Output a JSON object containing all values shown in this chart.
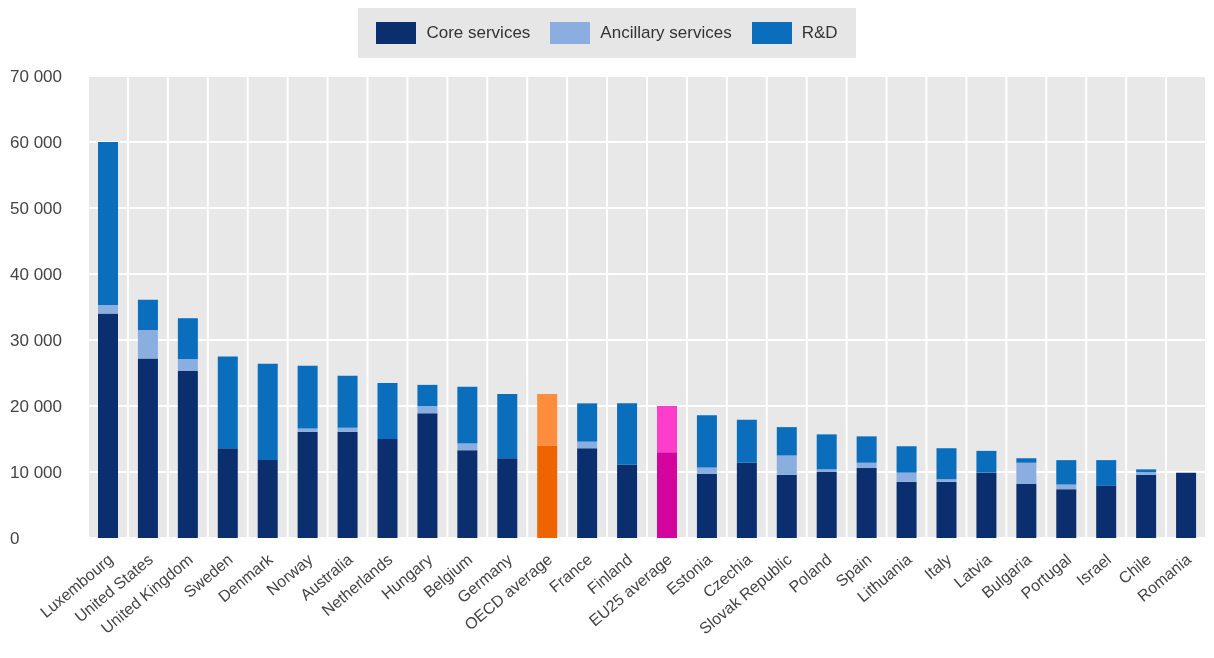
{
  "chart_data": {
    "type": "bar",
    "stacked": true,
    "categories": [
      "Luxembourg",
      "United States",
      "United Kingdom",
      "Sweden",
      "Denmark",
      "Norway",
      "Australia",
      "Netherlands",
      "Hungary",
      "Belgium",
      "Germany",
      "OECD average",
      "France",
      "Finland",
      "EU25 average",
      "Estonia",
      "Czechia",
      "Slovak Republic",
      "Poland",
      "Spain",
      "Lithuania",
      "Italy",
      "Latvia",
      "Bulgaria",
      "Portugal",
      "Israel",
      "Chile",
      "Romania"
    ],
    "series": [
      {
        "name": "Core services",
        "color": "#0b2f6e",
        "colors": [
          "#0b2f6e",
          "#0b2f6e",
          "#0b2f6e",
          "#0b2f6e",
          "#0b2f6e",
          "#0b2f6e",
          "#0b2f6e",
          "#0b2f6e",
          "#0b2f6e",
          "#0b2f6e",
          "#0b2f6e",
          "#f06400",
          "#0b2f6e",
          "#0b2f6e",
          "#d4049f",
          "#0b2f6e",
          "#0b2f6e",
          "#0b2f6e",
          "#0b2f6e",
          "#0b2f6e",
          "#0b2f6e",
          "#0b2f6e",
          "#0b2f6e",
          "#0b2f6e",
          "#0b2f6e",
          "#0b2f6e",
          "#0b2f6e",
          "#0b2f6e"
        ],
        "values": [
          34000,
          27200,
          25300,
          13600,
          11800,
          16100,
          16100,
          15000,
          18900,
          13300,
          12100,
          14000,
          13600,
          11100,
          13000,
          9700,
          11400,
          9600,
          10000,
          10600,
          8500,
          8500,
          9900,
          8200,
          7400,
          7900,
          9600,
          9900
        ]
      },
      {
        "name": "Ancillary services",
        "color": "#8aaee0",
        "values": [
          1300,
          4300,
          1800,
          0,
          0,
          500,
          600,
          0,
          1100,
          1000,
          0,
          0,
          1000,
          0,
          0,
          1000,
          0,
          2900,
          400,
          800,
          1400,
          400,
          0,
          3200,
          700,
          0,
          400,
          0
        ]
      },
      {
        "name": "R&D",
        "color": "#0a6ebd",
        "colors": [
          "#0a6ebd",
          "#0a6ebd",
          "#0a6ebd",
          "#0a6ebd",
          "#0a6ebd",
          "#0a6ebd",
          "#0a6ebd",
          "#0a6ebd",
          "#0a6ebd",
          "#0a6ebd",
          "#0a6ebd",
          "#fd8c3c",
          "#0a6ebd",
          "#0a6ebd",
          "#ff3dcb",
          "#0a6ebd",
          "#0a6ebd",
          "#0a6ebd",
          "#0a6ebd",
          "#0a6ebd",
          "#0a6ebd",
          "#0a6ebd",
          "#0a6ebd",
          "#0a6ebd",
          "#0a6ebd",
          "#0a6ebd",
          "#0a6ebd",
          "#0a6ebd"
        ],
        "values": [
          24700,
          4600,
          6200,
          13900,
          14600,
          9500,
          7900,
          8500,
          3200,
          8600,
          9700,
          7800,
          5800,
          9300,
          7000,
          7900,
          6500,
          4300,
          5300,
          4000,
          4000,
          4700,
          3300,
          700,
          3700,
          3900,
          400,
          0
        ]
      }
    ],
    "ylim": [
      0,
      70000
    ],
    "yticks": [
      {
        "value": 0,
        "label": "0"
      },
      {
        "value": 10000,
        "label": "10 000"
      },
      {
        "value": 20000,
        "label": "20 000"
      },
      {
        "value": 30000,
        "label": "30 000"
      },
      {
        "value": 40000,
        "label": "40 000"
      },
      {
        "value": 50000,
        "label": "50 000"
      },
      {
        "value": 60000,
        "label": "60 000"
      },
      {
        "value": 70000,
        "label": "70 000"
      }
    ],
    "grid": true,
    "legend": "top"
  }
}
